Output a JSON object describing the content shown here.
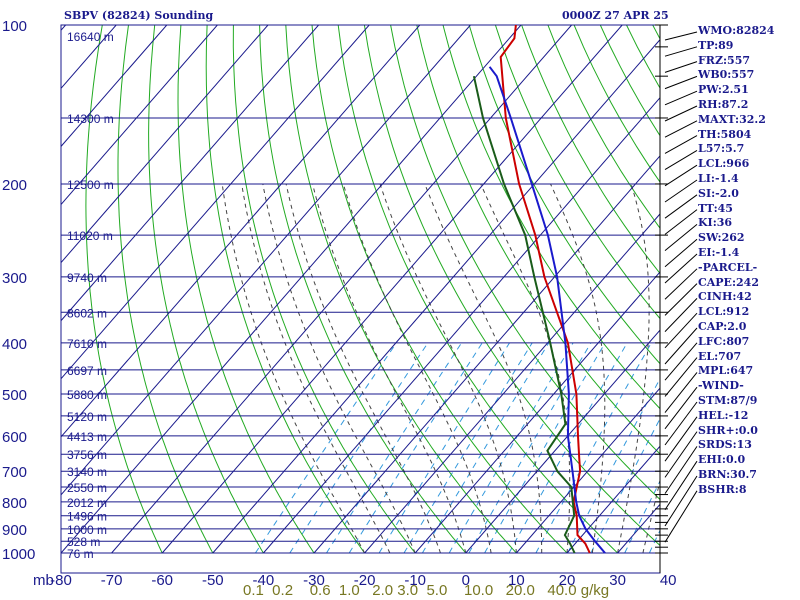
{
  "header": {
    "station": "SBPV (82824) Sounding",
    "time": "0000Z 27 APR 25"
  },
  "colors": {
    "frame": "#1a1a8c",
    "isotherm": "#1a1a8c",
    "dry_adiabat": "#22aa22",
    "moist_adiabat": "#444444",
    "mixing_ratio": "#3399dd",
    "temperature": "#cc0000",
    "dewpoint": "#1a5c1a",
    "parcel": "#1a1acc",
    "text": "#1a1a8c",
    "mixing_ratio_label": "#777722"
  },
  "chart_data": {
    "type": "line",
    "title": "SBPV (82824) Sounding",
    "subtitle": "0000Z 27 APR 25",
    "x_axis": {
      "label": "",
      "unit_label": "mb",
      "lim": [
        -80,
        0
      ],
      "ticks": [
        "-80",
        "-70",
        "-60",
        "-50",
        "-40",
        "-30",
        "-20",
        "-10",
        "0",
        "10",
        "20",
        "30",
        "40"
      ],
      "skewed": true
    },
    "y_axis": {
      "label": "",
      "lim": [
        1000,
        100
      ],
      "scale": "log",
      "ticks": [
        "100",
        "200",
        "300",
        "400",
        "500",
        "600",
        "700",
        "800",
        "900",
        "1000"
      ]
    },
    "height_labels": [
      {
        "p": 105,
        "label": "16640 m"
      },
      {
        "p": 150,
        "label": "14300 m"
      },
      {
        "p": 200,
        "label": "12500 m"
      },
      {
        "p": 250,
        "label": "11020 m"
      },
      {
        "p": 300,
        "label": "9740 m"
      },
      {
        "p": 350,
        "label": "8602 m"
      },
      {
        "p": 400,
        "label": "7610 m"
      },
      {
        "p": 450,
        "label": "6697 m"
      },
      {
        "p": 500,
        "label": "5880 m"
      },
      {
        "p": 550,
        "label": "5120 m"
      },
      {
        "p": 600,
        "label": "4413 m"
      },
      {
        "p": 650,
        "label": "3756 m"
      },
      {
        "p": 700,
        "label": "3140 m"
      },
      {
        "p": 750,
        "label": "2550 m"
      },
      {
        "p": 800,
        "label": "2012 m"
      },
      {
        "p": 850,
        "label": "1496 m"
      },
      {
        "p": 900,
        "label": "1000 m"
      },
      {
        "p": 950,
        "label": "528 m"
      },
      {
        "p": 1000,
        "label": "76 m"
      }
    ],
    "mixing_ratio_labels": [
      "0.1",
      "0.2",
      "0.6",
      "1.0",
      "2.0",
      "3.0",
      "5.0",
      "10.0",
      "20.0",
      "40.0"
    ],
    "mixing_ratio_unit": "g/kg",
    "mixing_ratio_axis_text": "0.1  0.2    0.6  1.0   2.0 3.0  5.0    10.0   20.0   40.0 g/kg",
    "series": [
      {
        "name": "",
        "role": "temperature",
        "points": [
          {
            "p": 1000,
            "t": 24.5
          },
          {
            "p": 960,
            "t": 22
          },
          {
            "p": 925,
            "t": 19
          },
          {
            "p": 850,
            "t": 15.5
          },
          {
            "p": 800,
            "t": 12.5
          },
          {
            "p": 700,
            "t": 8.5
          },
          {
            "p": 660,
            "t": 6
          },
          {
            "p": 600,
            "t": 2
          },
          {
            "p": 500,
            "t": -5.5
          },
          {
            "p": 400,
            "t": -16
          },
          {
            "p": 300,
            "t": -32
          },
          {
            "p": 250,
            "t": -41
          },
          {
            "p": 200,
            "t": -53
          },
          {
            "p": 150,
            "t": -67
          },
          {
            "p": 115,
            "t": -78.5
          },
          {
            "p": 106,
            "t": -79
          },
          {
            "p": 100,
            "t": -81
          }
        ]
      },
      {
        "name": "",
        "role": "dewpoint",
        "points": [
          {
            "p": 1000,
            "t": 21.5
          },
          {
            "p": 960,
            "t": 19
          },
          {
            "p": 925,
            "t": 16.5
          },
          {
            "p": 850,
            "t": 15
          },
          {
            "p": 750,
            "t": 9.5
          },
          {
            "p": 700,
            "t": 4
          },
          {
            "p": 640,
            "t": -1.5
          },
          {
            "p": 570,
            "t": -2.5
          },
          {
            "p": 500,
            "t": -8.5
          },
          {
            "p": 400,
            "t": -19.5
          },
          {
            "p": 300,
            "t": -34
          },
          {
            "p": 250,
            "t": -43
          },
          {
            "p": 200,
            "t": -56
          },
          {
            "p": 150,
            "t": -71.5
          },
          {
            "p": 125,
            "t": -80.5
          }
        ]
      },
      {
        "name": "",
        "role": "parcel",
        "points": [
          {
            "p": 1000,
            "t": 27.5
          },
          {
            "p": 950,
            "t": 23.5
          },
          {
            "p": 900,
            "t": 19.5
          },
          {
            "p": 850,
            "t": 16
          },
          {
            "p": 800,
            "t": 13
          },
          {
            "p": 700,
            "t": 7
          },
          {
            "p": 600,
            "t": 0
          },
          {
            "p": 500,
            "t": -7
          },
          {
            "p": 400,
            "t": -16.5
          },
          {
            "p": 300,
            "t": -29.5
          },
          {
            "p": 250,
            "t": -38.5
          },
          {
            "p": 200,
            "t": -50.5
          },
          {
            "p": 150,
            "t": -66
          },
          {
            "p": 125,
            "t": -76
          },
          {
            "p": 120,
            "t": -79
          }
        ]
      }
    ],
    "wind_barbs": [
      {
        "p": 1000
      },
      {
        "p": 975
      },
      {
        "p": 950
      },
      {
        "p": 925
      },
      {
        "p": 900
      },
      {
        "p": 875
      },
      {
        "p": 850
      },
      {
        "p": 825
      },
      {
        "p": 800
      },
      {
        "p": 775
      },
      {
        "p": 750
      },
      {
        "p": 700
      },
      {
        "p": 650
      },
      {
        "p": 600
      },
      {
        "p": 550
      },
      {
        "p": 500
      },
      {
        "p": 450
      },
      {
        "p": 400
      },
      {
        "p": 350
      },
      {
        "p": 300
      },
      {
        "p": 250
      },
      {
        "p": 200
      },
      {
        "p": 150
      },
      {
        "p": 125
      },
      {
        "p": 110
      },
      {
        "p": 100
      }
    ]
  },
  "indices": [
    "WMO:82824",
    "TP:89",
    "FRZ:557",
    "WB0:557",
    "PW:2.51",
    "RH:87.2",
    "MAXT:32.2",
    "TH:5804",
    "L57:5.7",
    "LCL:966",
    "LI:-1.4",
    "SI:-2.0",
    "TT:45",
    "KI:36",
    "SW:262",
    "EI:-1.4",
    "-PARCEL-",
    "CAPE:242",
    "CINH:42",
    "LCL:912",
    "CAP:2.0",
    "LFC:807",
    "EL:707",
    "MPL:647",
    "-WIND-",
    "STM:87/9",
    "HEL:-12",
    "SHR+:0.0",
    "SRDS:13",
    "EHI:0.0",
    "BRN:30.7",
    "BSHR:8"
  ]
}
